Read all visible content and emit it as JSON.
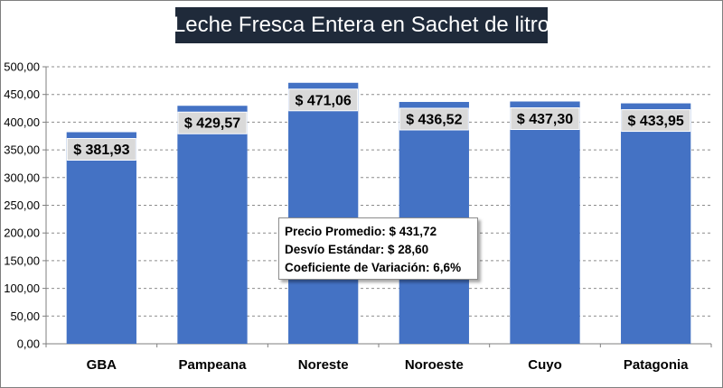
{
  "chart_data": {
    "type": "bar",
    "title": "Leche Fresca Entera en Sachet de litro",
    "categories": [
      "GBA",
      "Pampeana",
      "Noreste",
      "Noroeste",
      "Cuyo",
      "Patagonia"
    ],
    "values": [
      381.93,
      429.57,
      471.06,
      436.52,
      437.3,
      433.95
    ],
    "value_labels": [
      "$ 381,93",
      "$ 429,57",
      "$ 471,06",
      "$ 436,52",
      "$ 437,30",
      "$ 433,95"
    ],
    "xlabel": "",
    "ylabel": "",
    "ylim": [
      0,
      500
    ],
    "y_ticks": [
      0,
      50,
      100,
      150,
      200,
      250,
      300,
      350,
      400,
      450,
      500
    ],
    "y_tick_labels": [
      "0,00",
      "50,00",
      "100,00",
      "150,00",
      "200,00",
      "250,00",
      "300,00",
      "350,00",
      "400,00",
      "450,00",
      "500,00"
    ],
    "grid": true,
    "bar_color": "#4472c4",
    "annotations": [
      "Precio Promedio: $ 431,72",
      "Desvío Estándar: $ 28,60",
      "Coeficiente de Variación: 6,6%"
    ]
  }
}
